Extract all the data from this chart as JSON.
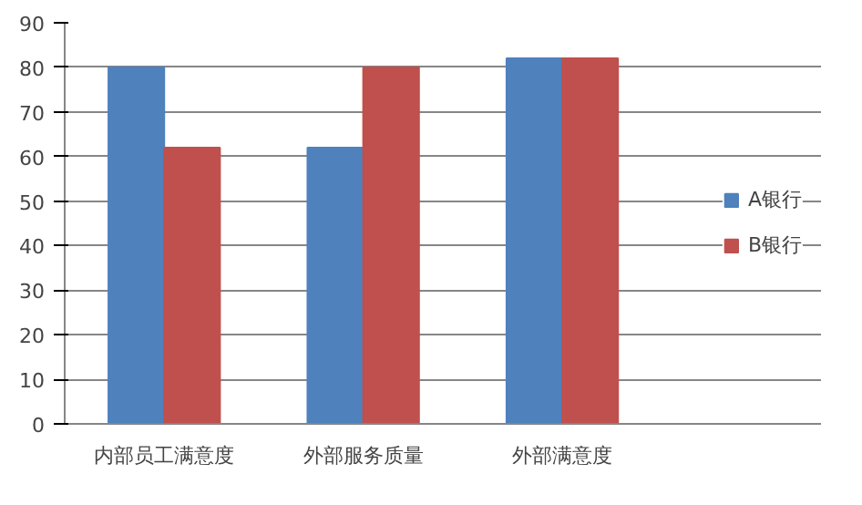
{
  "chart_data": {
    "type": "bar",
    "categories": [
      "内部员工满意度",
      "外部服务质量",
      "外部满意度"
    ],
    "series": [
      {
        "name": "A银行",
        "color": "#4f81bd",
        "values": [
          80,
          62,
          82
        ]
      },
      {
        "name": "B银行",
        "color": "#c0504d",
        "values": [
          62,
          80,
          82
        ]
      }
    ],
    "ylim": [
      0,
      90
    ],
    "yticks": [
      0,
      10,
      20,
      30,
      40,
      50,
      60,
      70,
      80,
      90
    ],
    "grid": "y",
    "legend": "right"
  }
}
